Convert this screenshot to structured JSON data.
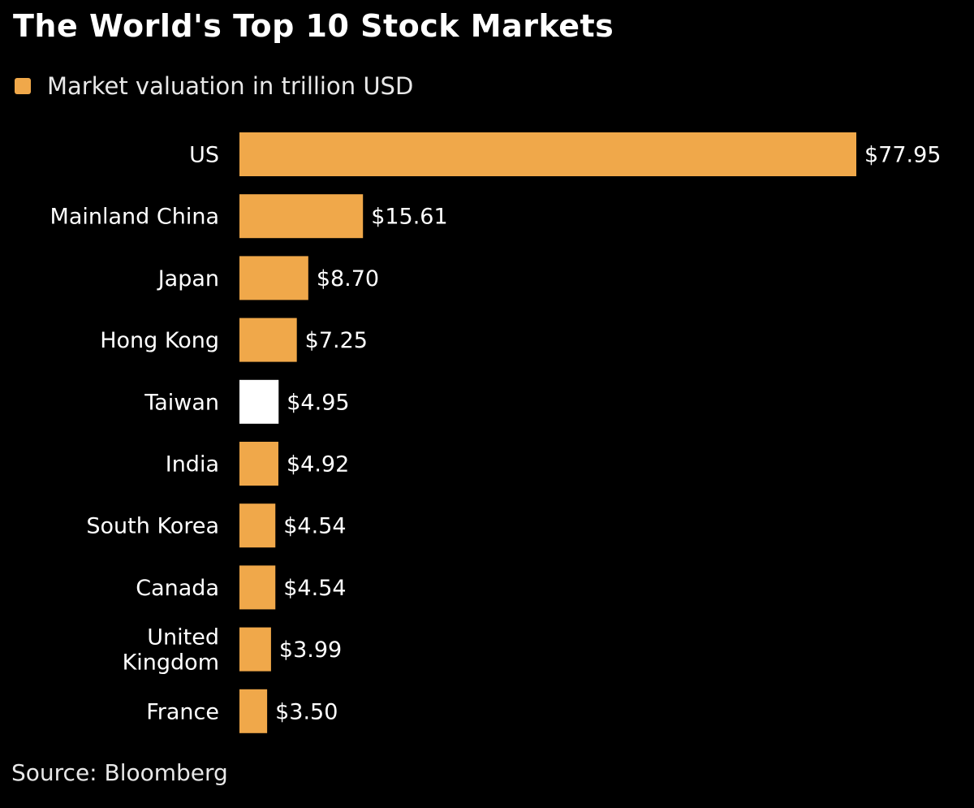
{
  "colors": {
    "background": "#000000",
    "bar": "#f0a84a",
    "highlight_bar": "#ffffff",
    "text": "#ffffff"
  },
  "chart_data": {
    "type": "bar",
    "orientation": "horizontal",
    "title": "The World's Top 10 Stock Markets",
    "legend": {
      "position": "top-left",
      "entries": [
        "Market valuation in trillion USD"
      ]
    },
    "categories": [
      [
        "US"
      ],
      [
        "Mainland China"
      ],
      [
        "Japan"
      ],
      [
        "Hong Kong"
      ],
      [
        "Taiwan"
      ],
      [
        "India"
      ],
      [
        "South Korea"
      ],
      [
        "Canada"
      ],
      [
        "United",
        "Kingdom"
      ],
      [
        "France"
      ]
    ],
    "series": [
      {
        "name": "Market valuation in trillion USD",
        "values": [
          77.95,
          15.61,
          8.7,
          7.25,
          4.95,
          4.92,
          4.54,
          4.54,
          3.99,
          3.5
        ],
        "value_labels": [
          "$77.95",
          "$15.61",
          "$8.70",
          "$7.25",
          "$4.95",
          "$4.92",
          "$4.54",
          "$4.54",
          "$3.99",
          "$3.50"
        ]
      }
    ],
    "highlighted_category": "Taiwan",
    "xlim": [
      0,
      77.95
    ],
    "grid": false,
    "source": "Source: Bloomberg"
  }
}
